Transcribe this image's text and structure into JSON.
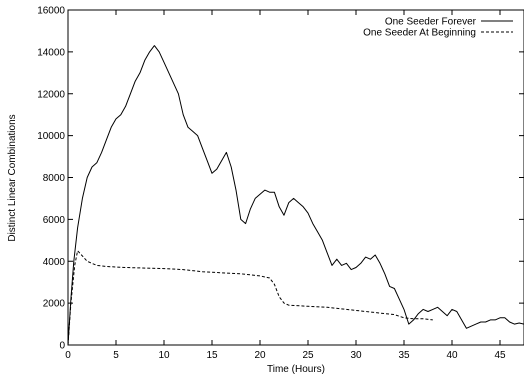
{
  "chart_data": {
    "type": "line",
    "xlabel": "Time (Hours)",
    "ylabel": "Distinct Linear Combinations",
    "xlim": [
      0,
      47.5
    ],
    "ylim": [
      0,
      16000
    ],
    "x_ticks": [
      0,
      5,
      10,
      15,
      20,
      25,
      30,
      35,
      40,
      45
    ],
    "y_ticks": [
      0,
      2000,
      4000,
      6000,
      8000,
      10000,
      12000,
      14000,
      16000
    ],
    "grid": false,
    "legend_position": "top-right",
    "series": [
      {
        "name": "One Seeder Forever",
        "style": "solid",
        "color": "#000000",
        "points": [
          [
            0,
            0
          ],
          [
            0.3,
            2200
          ],
          [
            0.6,
            4000
          ],
          [
            1,
            5600
          ],
          [
            1.5,
            7000
          ],
          [
            2,
            8000
          ],
          [
            2.5,
            8500
          ],
          [
            3,
            8700
          ],
          [
            3.5,
            9200
          ],
          [
            4,
            9800
          ],
          [
            4.5,
            10400
          ],
          [
            5,
            10800
          ],
          [
            5.5,
            11000
          ],
          [
            6,
            11400
          ],
          [
            6.5,
            12000
          ],
          [
            7,
            12600
          ],
          [
            7.5,
            13000
          ],
          [
            8,
            13600
          ],
          [
            8.5,
            14000
          ],
          [
            9,
            14300
          ],
          [
            9.5,
            14000
          ],
          [
            10,
            13500
          ],
          [
            10.5,
            13000
          ],
          [
            11,
            12500
          ],
          [
            11.5,
            12000
          ],
          [
            12,
            11000
          ],
          [
            12.5,
            10400
          ],
          [
            13,
            10200
          ],
          [
            13.5,
            10000
          ],
          [
            14,
            9400
          ],
          [
            14.5,
            8800
          ],
          [
            15,
            8200
          ],
          [
            15.5,
            8400
          ],
          [
            16,
            8800
          ],
          [
            16.5,
            9200
          ],
          [
            17,
            8500
          ],
          [
            17.5,
            7400
          ],
          [
            18,
            6000
          ],
          [
            18.5,
            5800
          ],
          [
            19,
            6500
          ],
          [
            19.5,
            7000
          ],
          [
            20,
            7200
          ],
          [
            20.5,
            7400
          ],
          [
            21,
            7300
          ],
          [
            21.5,
            7300
          ],
          [
            22,
            6600
          ],
          [
            22.5,
            6200
          ],
          [
            23,
            6800
          ],
          [
            23.5,
            7000
          ],
          [
            24,
            6800
          ],
          [
            24.5,
            6600
          ],
          [
            25,
            6300
          ],
          [
            25.5,
            5800
          ],
          [
            26,
            5400
          ],
          [
            26.5,
            5000
          ],
          [
            27,
            4400
          ],
          [
            27.5,
            3800
          ],
          [
            28,
            4100
          ],
          [
            28.5,
            3800
          ],
          [
            29,
            3900
          ],
          [
            29.5,
            3600
          ],
          [
            30,
            3700
          ],
          [
            30.5,
            3900
          ],
          [
            31,
            4200
          ],
          [
            31.5,
            4100
          ],
          [
            32,
            4300
          ],
          [
            32.5,
            3900
          ],
          [
            33,
            3400
          ],
          [
            33.5,
            2800
          ],
          [
            34,
            2700
          ],
          [
            34.5,
            2200
          ],
          [
            35,
            1700
          ],
          [
            35.5,
            1000
          ],
          [
            36,
            1200
          ],
          [
            36.5,
            1500
          ],
          [
            37,
            1700
          ],
          [
            37.5,
            1600
          ],
          [
            38,
            1700
          ],
          [
            38.5,
            1800
          ],
          [
            39,
            1600
          ],
          [
            39.5,
            1400
          ],
          [
            40,
            1700
          ],
          [
            40.5,
            1600
          ],
          [
            41,
            1200
          ],
          [
            41.5,
            800
          ],
          [
            42,
            900
          ],
          [
            42.5,
            1000
          ],
          [
            43,
            1100
          ],
          [
            43.5,
            1100
          ],
          [
            44,
            1200
          ],
          [
            44.5,
            1200
          ],
          [
            45,
            1300
          ],
          [
            45.5,
            1300
          ],
          [
            46,
            1100
          ],
          [
            46.5,
            1000
          ],
          [
            47,
            1050
          ],
          [
            47.5,
            1000
          ]
        ]
      },
      {
        "name": "One Seeder At Beginning",
        "style": "dashed",
        "color": "#000000",
        "points": [
          [
            0,
            0
          ],
          [
            0.3,
            2000
          ],
          [
            0.7,
            3800
          ],
          [
            1,
            4500
          ],
          [
            1.3,
            4350
          ],
          [
            2,
            4000
          ],
          [
            3,
            3800
          ],
          [
            4,
            3750
          ],
          [
            6,
            3700
          ],
          [
            10,
            3650
          ],
          [
            12,
            3600
          ],
          [
            14,
            3500
          ],
          [
            16,
            3450
          ],
          [
            18,
            3400
          ],
          [
            20,
            3300
          ],
          [
            21,
            3200
          ],
          [
            21.5,
            2900
          ],
          [
            22,
            2300
          ],
          [
            22.5,
            2000
          ],
          [
            23,
            1900
          ],
          [
            25,
            1850
          ],
          [
            27,
            1800
          ],
          [
            29,
            1700
          ],
          [
            31,
            1600
          ],
          [
            33,
            1500
          ],
          [
            34,
            1450
          ],
          [
            35,
            1300
          ],
          [
            36,
            1250
          ],
          [
            37,
            1250
          ],
          [
            38,
            1200
          ]
        ]
      }
    ]
  }
}
